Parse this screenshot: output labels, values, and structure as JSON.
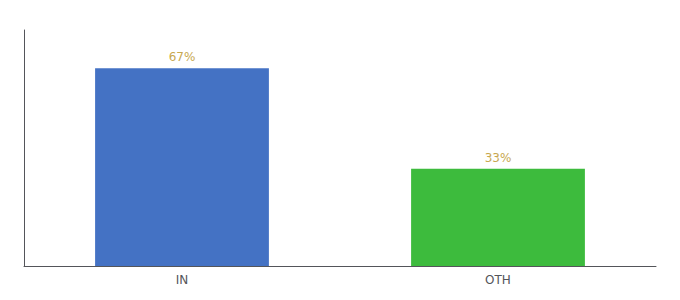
{
  "chart_data": {
    "type": "bar",
    "categories": [
      "IN",
      "OTH"
    ],
    "values": [
      67,
      33
    ],
    "value_labels": [
      "67%",
      "33%"
    ],
    "colors": [
      "#4472c4",
      "#3dbb3d"
    ],
    "ylim": [
      0,
      80
    ],
    "grid": false,
    "data_labels": true,
    "tick_labels": "x"
  }
}
